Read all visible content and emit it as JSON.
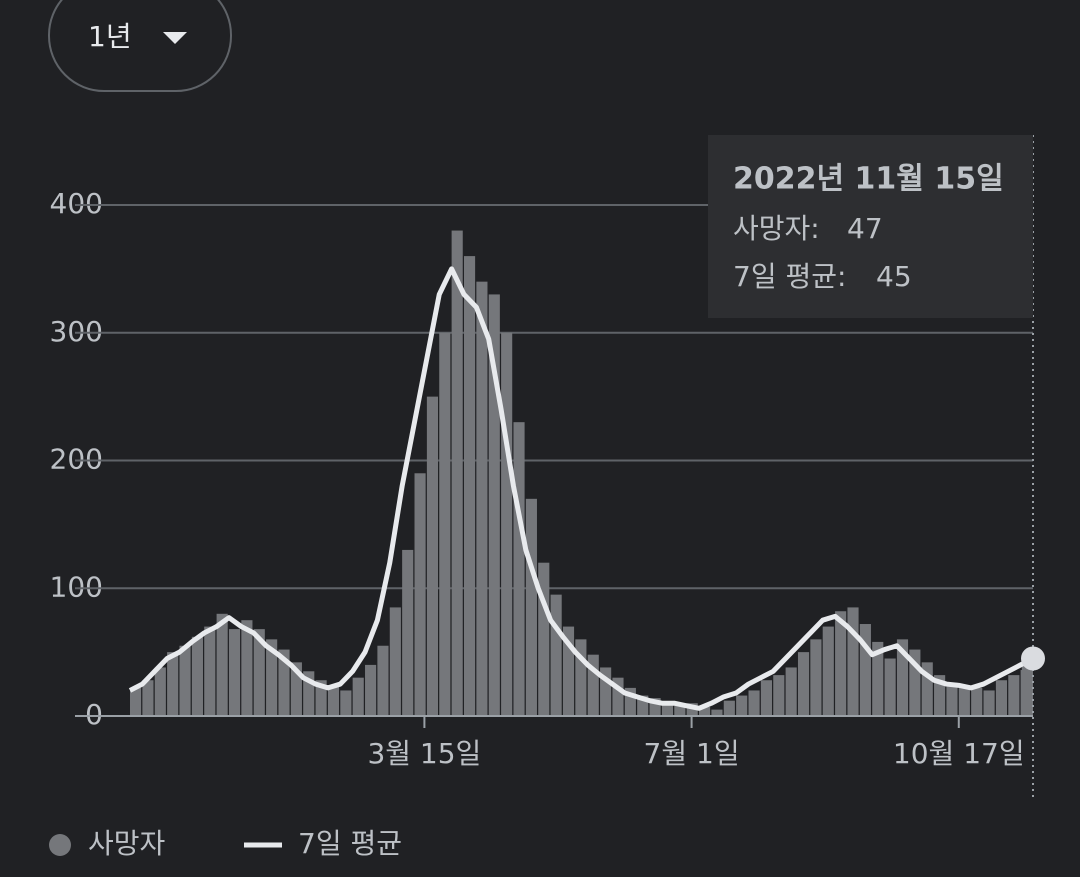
{
  "range_selector": {
    "label": "1년"
  },
  "chart_data": {
    "type": "bar-line",
    "x": [
      0,
      5,
      10,
      15,
      20,
      25,
      30,
      35,
      40,
      45,
      50,
      55,
      60,
      65,
      70,
      75,
      80,
      85,
      90,
      95,
      100,
      105,
      110,
      115,
      120,
      125,
      130,
      135,
      140,
      145,
      150,
      155,
      160,
      165,
      170,
      175,
      180,
      185,
      190,
      195,
      200,
      205,
      210,
      215,
      220,
      225,
      230,
      235,
      240,
      245,
      250,
      255,
      260,
      265,
      270,
      275,
      280,
      285,
      290,
      295,
      300,
      305,
      310,
      315,
      320,
      325,
      330,
      335,
      340,
      345,
      350,
      355,
      360,
      365
    ],
    "series": [
      {
        "name": "사망자",
        "color": "#75777b",
        "values": [
          22,
          28,
          38,
          50,
          55,
          62,
          70,
          80,
          68,
          75,
          68,
          60,
          52,
          42,
          35,
          28,
          24,
          20,
          30,
          40,
          55,
          85,
          130,
          190,
          250,
          300,
          380,
          360,
          340,
          330,
          300,
          230,
          170,
          120,
          95,
          70,
          60,
          48,
          38,
          30,
          22,
          16,
          14,
          11,
          9,
          10,
          7,
          5,
          12,
          16,
          20,
          28,
          32,
          38,
          50,
          60,
          70,
          82,
          85,
          72,
          58,
          45,
          60,
          52,
          42,
          32,
          26,
          24,
          22,
          20,
          28,
          32,
          36,
          47
        ]
      },
      {
        "name": "7일 평균",
        "color": "#e8eaed",
        "values": [
          20,
          25,
          35,
          45,
          50,
          58,
          65,
          70,
          77,
          70,
          65,
          55,
          48,
          40,
          30,
          25,
          22,
          25,
          35,
          50,
          75,
          120,
          180,
          230,
          280,
          330,
          350,
          330,
          320,
          295,
          240,
          180,
          130,
          100,
          75,
          62,
          50,
          40,
          32,
          25,
          18,
          15,
          12,
          10,
          10,
          8,
          6,
          10,
          15,
          18,
          25,
          30,
          35,
          45,
          55,
          65,
          75,
          78,
          70,
          60,
          48,
          52,
          55,
          45,
          35,
          28,
          25,
          24,
          22,
          25,
          30,
          35,
          40,
          45
        ]
      }
    ],
    "xlim": [
      0,
      365
    ],
    "xticks": [
      {
        "value": 119,
        "label": "3월 15일"
      },
      {
        "value": 227,
        "label": "7월 1일"
      },
      {
        "value": 335,
        "label": "10월 17일"
      }
    ],
    "ylim": [
      0,
      400
    ],
    "yticks": [
      0,
      100,
      200,
      300,
      400
    ],
    "grid": true,
    "tooltip": {
      "date": "2022년 11월 15일",
      "rows": [
        {
          "label": "사망자:",
          "value": 47
        },
        {
          "label": "7일 평균:",
          "value": 45
        }
      ]
    }
  }
}
